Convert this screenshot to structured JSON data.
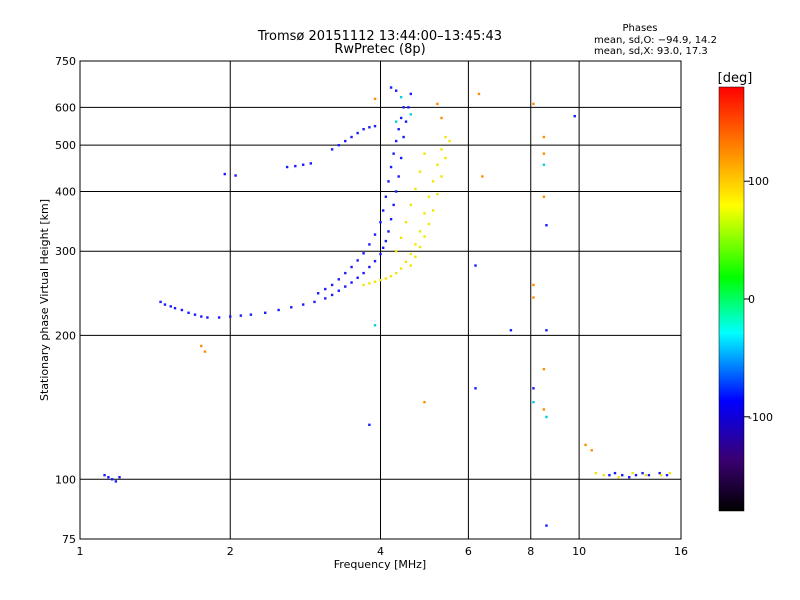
{
  "chart_data": {
    "type": "scatter",
    "title": "Tromsø 20151112 13:44:00–13:45:43",
    "subtitle": "RwPretec (8p)",
    "xlabel": "Frequency [MHz]",
    "ylabel": "Stationary phase Virtual Height [km]",
    "xscale": "log",
    "yscale": "log",
    "xlim": [
      1,
      16
    ],
    "ylim": [
      75,
      750
    ],
    "xticks": [
      1,
      2,
      4,
      6,
      8,
      10,
      16
    ],
    "xtick_labels": [
      "1",
      "2",
      "4",
      "6",
      "8",
      "10",
      "16"
    ],
    "yticks": [
      75,
      100,
      200,
      300,
      400,
      500,
      600,
      750
    ],
    "ytick_labels": [
      "75",
      "100",
      "200",
      "300",
      "400",
      "500",
      "600",
      "750"
    ],
    "grid": true,
    "stats": {
      "title": "Phases",
      "line_o": "mean, sd,O: −94.9, 14.2",
      "line_x": "mean, sd,X:  93.0, 17.3"
    },
    "colorbar": {
      "unit": "[deg]",
      "range": [
        -180,
        180
      ],
      "ticks": [
        100,
        0,
        -100
      ],
      "tick_labels": [
        "100",
        "0",
        "-100"
      ]
    },
    "series": [
      {
        "name": "O-trace F2 (blue)",
        "phase": -100,
        "color": "#1a1aff",
        "points": [
          [
            1.45,
            235
          ],
          [
            1.48,
            232
          ],
          [
            1.52,
            230
          ],
          [
            1.55,
            228
          ],
          [
            1.6,
            226
          ],
          [
            1.65,
            223
          ],
          [
            1.7,
            221
          ],
          [
            1.75,
            219
          ],
          [
            1.8,
            218
          ],
          [
            1.9,
            218
          ],
          [
            2.0,
            219
          ],
          [
            2.1,
            220
          ],
          [
            2.2,
            221
          ],
          [
            2.35,
            223
          ],
          [
            2.5,
            226
          ],
          [
            2.65,
            229
          ],
          [
            2.8,
            232
          ],
          [
            2.95,
            235
          ],
          [
            3.1,
            239
          ],
          [
            3.2,
            243
          ],
          [
            3.3,
            248
          ],
          [
            3.4,
            253
          ],
          [
            3.5,
            258
          ],
          [
            3.6,
            264
          ],
          [
            3.7,
            270
          ],
          [
            3.8,
            278
          ],
          [
            3.9,
            286
          ],
          [
            4.0,
            296
          ],
          [
            4.05,
            305
          ],
          [
            4.1,
            315
          ],
          [
            4.15,
            330
          ],
          [
            4.2,
            350
          ],
          [
            4.25,
            375
          ],
          [
            4.3,
            400
          ],
          [
            4.35,
            430
          ],
          [
            4.4,
            470
          ],
          [
            4.45,
            520
          ],
          [
            4.5,
            560
          ],
          [
            4.55,
            600
          ],
          [
            4.6,
            640
          ],
          [
            4.2,
            660
          ],
          [
            4.3,
            650
          ]
        ]
      },
      {
        "name": "O-trace lower branch (blue)",
        "phase": -100,
        "color": "#1a1aff",
        "points": [
          [
            3.0,
            245
          ],
          [
            3.1,
            250
          ],
          [
            3.2,
            255
          ],
          [
            3.3,
            262
          ],
          [
            3.4,
            270
          ],
          [
            3.5,
            278
          ],
          [
            3.6,
            287
          ],
          [
            3.7,
            297
          ],
          [
            3.8,
            310
          ],
          [
            3.9,
            325
          ],
          [
            4.0,
            345
          ],
          [
            4.05,
            365
          ],
          [
            4.1,
            390
          ],
          [
            4.15,
            420
          ],
          [
            4.2,
            450
          ],
          [
            4.25,
            480
          ],
          [
            4.3,
            510
          ],
          [
            4.35,
            540
          ],
          [
            4.4,
            570
          ],
          [
            4.45,
            600
          ]
        ]
      },
      {
        "name": "O-trace high segment (blue)",
        "phase": -100,
        "color": "#1a1aff",
        "points": [
          [
            2.6,
            450
          ],
          [
            2.7,
            452
          ],
          [
            2.8,
            455
          ],
          [
            2.9,
            458
          ],
          [
            3.2,
            490
          ],
          [
            3.3,
            500
          ],
          [
            3.4,
            510
          ],
          [
            3.5,
            520
          ],
          [
            3.6,
            530
          ],
          [
            3.7,
            540
          ],
          [
            3.8,
            545
          ],
          [
            3.9,
            548
          ],
          [
            1.95,
            435
          ],
          [
            2.05,
            432
          ]
        ]
      },
      {
        "name": "O-trace E region (blue)",
        "phase": -100,
        "color": "#1a1aff",
        "points": [
          [
            1.12,
            102
          ],
          [
            1.14,
            101
          ],
          [
            1.16,
            100
          ],
          [
            1.18,
            99
          ],
          [
            1.2,
            101
          ],
          [
            11.5,
            102
          ],
          [
            11.8,
            103
          ],
          [
            12.2,
            102
          ],
          [
            12.6,
            101
          ],
          [
            13.0,
            102
          ],
          [
            13.4,
            103
          ],
          [
            13.8,
            102
          ],
          [
            14.5,
            103
          ],
          [
            15.0,
            102
          ]
        ]
      },
      {
        "name": "X-trace F2 (yellow)",
        "phase": 100,
        "color": "#f2e600",
        "points": [
          [
            3.7,
            255
          ],
          [
            3.8,
            257
          ],
          [
            3.9,
            259
          ],
          [
            4.0,
            261
          ],
          [
            4.1,
            263
          ],
          [
            4.2,
            266
          ],
          [
            4.3,
            270
          ],
          [
            4.4,
            276
          ],
          [
            4.5,
            285
          ],
          [
            4.6,
            296
          ],
          [
            4.7,
            310
          ],
          [
            4.8,
            330
          ],
          [
            4.9,
            360
          ],
          [
            5.0,
            390
          ],
          [
            5.1,
            420
          ],
          [
            5.2,
            455
          ],
          [
            5.3,
            490
          ],
          [
            5.4,
            520
          ],
          [
            4.6,
            280
          ],
          [
            4.7,
            292
          ],
          [
            4.8,
            306
          ],
          [
            4.9,
            322
          ],
          [
            5.0,
            342
          ],
          [
            5.1,
            365
          ],
          [
            5.2,
            395
          ],
          [
            5.3,
            430
          ],
          [
            5.4,
            470
          ],
          [
            5.5,
            510
          ],
          [
            4.3,
            300
          ],
          [
            4.4,
            320
          ],
          [
            4.5,
            345
          ],
          [
            4.6,
            375
          ],
          [
            4.7,
            405
          ],
          [
            4.8,
            440
          ],
          [
            4.9,
            480
          ]
        ]
      },
      {
        "name": "X-trace E region (yellow)",
        "phase": 100,
        "color": "#f2e600",
        "points": [
          [
            10.8,
            103
          ],
          [
            11.2,
            102
          ],
          [
            12.0,
            101
          ],
          [
            12.8,
            103
          ],
          [
            13.6,
            102
          ],
          [
            14.6,
            102
          ],
          [
            15.2,
            103
          ]
        ]
      },
      {
        "name": "scattered orange",
        "phase": 140,
        "color": "#ff8c00",
        "points": [
          [
            6.3,
            640
          ],
          [
            6.4,
            430
          ],
          [
            8.1,
            610
          ],
          [
            8.5,
            520
          ],
          [
            8.5,
            480
          ],
          [
            8.5,
            390
          ],
          [
            8.1,
            255
          ],
          [
            8.1,
            240
          ],
          [
            8.5,
            170
          ],
          [
            8.5,
            140
          ],
          [
            10.3,
            118
          ],
          [
            10.6,
            115
          ],
          [
            3.9,
            625
          ],
          [
            5.2,
            610
          ],
          [
            5.3,
            570
          ],
          [
            1.75,
            190
          ],
          [
            1.78,
            185
          ],
          [
            4.9,
            145
          ]
        ]
      },
      {
        "name": "scattered cyan/green",
        "phase": 30,
        "color": "#00d0e0",
        "points": [
          [
            4.3,
            560
          ],
          [
            4.6,
            580
          ],
          [
            4.4,
            630
          ],
          [
            8.5,
            455
          ],
          [
            8.1,
            145
          ],
          [
            8.6,
            135
          ],
          [
            3.9,
            210
          ]
        ]
      },
      {
        "name": "scattered blue outliers",
        "phase": -110,
        "color": "#1a1aff",
        "points": [
          [
            9.8,
            575
          ],
          [
            8.6,
            340
          ],
          [
            8.6,
            205
          ],
          [
            8.1,
            155
          ],
          [
            6.2,
            280
          ],
          [
            6.2,
            155
          ],
          [
            7.3,
            205
          ],
          [
            3.8,
            130
          ],
          [
            8.6,
            80
          ]
        ]
      }
    ]
  }
}
